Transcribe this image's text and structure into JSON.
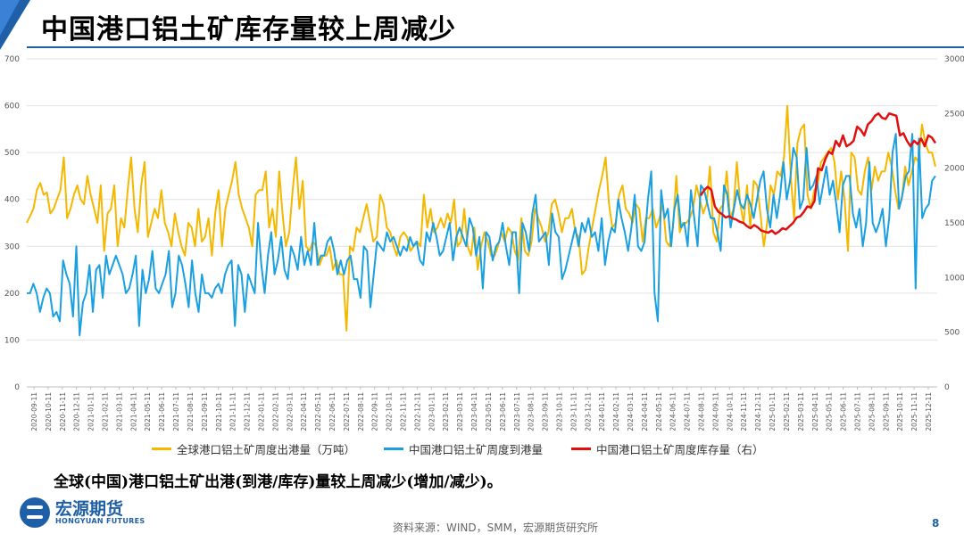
{
  "header": {
    "title": "中国港口铝土矿库存量较上周减少"
  },
  "note": "全球(中国)港口铝土矿出港(到港/库存)量较上周减少(增加/减少)。",
  "footer": {
    "source": "资料来源：WIND，SMM，宏源期货研究所",
    "page": "8",
    "logo_cn": "宏源期货",
    "logo_en": "HONGYUAN FUTURES"
  },
  "colors": {
    "accent": "#1f5fa8",
    "yellow": "#f5b800",
    "blue": "#1aa0e0",
    "red": "#e01010"
  },
  "chart_data": {
    "type": "line",
    "y_left": {
      "min": 0,
      "max": 700,
      "ticks": [
        0,
        100,
        200,
        300,
        400,
        500,
        600,
        700
      ]
    },
    "y_right": {
      "min": 0,
      "max": 3000,
      "ticks": [
        0,
        500,
        1000,
        1500,
        2000,
        2500,
        3000
      ]
    },
    "x_tick_labels": [
      "2020-09-11",
      "2020-10-11",
      "2020-11-11",
      "2020-12-11",
      "2021-01-11",
      "2021-02-11",
      "2021-03-11",
      "2021-04-11",
      "2021-05-11",
      "2021-06-11",
      "2021-07-11",
      "2021-08-11",
      "2021-09-11",
      "2021-10-11",
      "2021-11-11",
      "2021-12-11",
      "2022-01-11",
      "2022-02-11",
      "2022-03-11",
      "2022-04-11",
      "2022-05-11",
      "2022-06-11",
      "2022-07-11",
      "2022-08-11",
      "2022-09-11",
      "2022-10-11",
      "2022-11-11",
      "2022-12-11",
      "2023-01-11",
      "2023-02-11",
      "2023-03-11",
      "2023-04-11",
      "2023-05-11",
      "2023-06-11",
      "2023-07-11",
      "2023-08-11",
      "2023-09-11",
      "2023-10-11",
      "2023-11-11",
      "2023-12-11",
      "2024-01-11",
      "2024-02-11",
      "2024-03-11",
      "2024-04-11",
      "2024-05-11",
      "2024-06-11",
      "2024-07-11",
      "2024-08-11",
      "2024-09-11",
      "2024-10-11",
      "2024-11-11",
      "2024-12-11",
      "2025-01-11",
      "2025-02-11",
      "2025-03-11",
      "2025-04-11",
      "2025-05-11",
      "2025-06-11",
      "2025-07-11",
      "2025-08-11",
      "2025-09-11",
      "2025-10-11",
      "2025-11-11",
      "2025-12-11"
    ],
    "series": [
      {
        "name": "全球港口铝土矿周度出港量（万吨）",
        "axis": "left",
        "color": "#f5b800",
        "values": [
          350,
          365,
          380,
          420,
          435,
          410,
          415,
          370,
          380,
          400,
          420,
          490,
          360,
          380,
          410,
          430,
          400,
          390,
          450,
          410,
          380,
          350,
          430,
          290,
          370,
          380,
          430,
          300,
          360,
          340,
          420,
          490,
          380,
          330,
          430,
          480,
          320,
          350,
          380,
          360,
          420,
          350,
          330,
          300,
          370,
          330,
          300,
          280,
          350,
          340,
          300,
          380,
          310,
          320,
          360,
          280,
          370,
          420,
          300,
          380,
          410,
          440,
          480,
          410,
          380,
          360,
          340,
          300,
          410,
          420,
          420,
          460,
          340,
          380,
          320,
          460,
          370,
          300,
          330,
          420,
          490,
          380,
          440,
          300,
          290,
          310,
          300,
          260,
          280,
          280,
          300,
          250,
          270,
          240,
          240,
          120,
          300,
          290,
          340,
          330,
          360,
          390,
          350,
          310,
          320,
          410,
          390,
          340,
          330,
          300,
          280,
          320,
          330,
          320,
          290,
          300,
          310,
          300,
          410,
          340,
          380,
          330,
          340,
          360,
          340,
          370,
          350,
          400,
          300,
          310,
          380,
          300,
          280,
          340,
          250,
          300,
          330,
          310,
          280,
          280,
          300,
          330,
          310,
          340,
          330,
          290,
          270,
          360,
          290,
          280,
          310,
          380,
          360,
          340,
          310,
          330,
          390,
          400,
          370,
          330,
          360,
          360,
          380,
          330,
          320,
          240,
          250,
          300,
          340,
          380,
          420,
          450,
          490,
          390,
          340,
          350,
          410,
          430,
          380,
          370,
          350,
          390,
          380,
          310,
          360,
          360,
          380,
          340,
          360,
          390,
          310,
          300,
          340,
          450,
          330,
          350,
          350,
          360,
          380,
          430,
          400,
          370,
          390,
          470,
          330,
          310,
          380,
          390,
          460,
          360,
          380,
          480,
          390,
          350,
          430,
          340,
          440,
          430,
          370,
          300,
          350,
          430,
          410,
          460,
          450,
          490,
          600,
          450,
          360,
          520,
          550,
          560,
          410,
          380,
          420,
          430,
          480,
          490,
          500,
          510,
          480,
          400,
          460,
          400,
          290,
          500,
          490,
          420,
          410,
          460,
          490,
          420,
          470,
          440,
          460,
          460,
          500,
          470,
          420,
          380,
          400,
          470,
          430,
          460,
          490,
          480,
          560,
          520,
          500,
          500,
          470
        ]
      },
      {
        "name": "中国港口铝土矿周度到港量",
        "axis": "left",
        "color": "#1aa0e0",
        "values": [
          200,
          200,
          220,
          200,
          160,
          190,
          210,
          200,
          150,
          160,
          140,
          270,
          240,
          220,
          150,
          300,
          110,
          180,
          200,
          260,
          160,
          250,
          260,
          190,
          280,
          240,
          260,
          280,
          260,
          240,
          200,
          210,
          240,
          280,
          130,
          250,
          200,
          230,
          290,
          210,
          200,
          220,
          240,
          290,
          170,
          200,
          280,
          260,
          220,
          170,
          270,
          200,
          160,
          240,
          200,
          200,
          190,
          210,
          220,
          200,
          240,
          260,
          270,
          130,
          260,
          240,
          160,
          240,
          220,
          200,
          350,
          260,
          200,
          280,
          330,
          240,
          270,
          320,
          250,
          230,
          300,
          280,
          250,
          320,
          260,
          290,
          260,
          350,
          260,
          280,
          280,
          310,
          320,
          290,
          240,
          270,
          240,
          270,
          280,
          230,
          230,
          190,
          300,
          290,
          170,
          240,
          310,
          300,
          290,
          330,
          310,
          320,
          300,
          280,
          300,
          290,
          320,
          300,
          310,
          270,
          260,
          330,
          310,
          350,
          320,
          280,
          290,
          320,
          350,
          270,
          320,
          340,
          320,
          300,
          360,
          340,
          280,
          320,
          210,
          330,
          320,
          270,
          300,
          310,
          350,
          300,
          260,
          330,
          330,
          200,
          350,
          330,
          290,
          370,
          410,
          310,
          320,
          330,
          260,
          370,
          330,
          320,
          230,
          250,
          280,
          310,
          340,
          300,
          350,
          330,
          360,
          320,
          330,
          290,
          360,
          260,
          310,
          340,
          330,
          400,
          360,
          330,
          290,
          340,
          410,
          300,
          290,
          310,
          400,
          460,
          200,
          140,
          420,
          360,
          380,
          300,
          380,
          410,
          340,
          350,
          300,
          420,
          360,
          300,
          430,
          420,
          390,
          360,
          360,
          330,
          290,
          430,
          410,
          340,
          380,
          420,
          390,
          380,
          410,
          390,
          360,
          400,
          440,
          460,
          380,
          340,
          410,
          360,
          410,
          480,
          400,
          440,
          510,
          490,
          380,
          400,
          510,
          420,
          430,
          450,
          390,
          430,
          470,
          410,
          440,
          390,
          330,
          430,
          450,
          450,
          370,
          340,
          380,
          300,
          350,
          480,
          350,
          330,
          350,
          380,
          300,
          360,
          500,
          540,
          380,
          410,
          450,
          460,
          540,
          210,
          530,
          360,
          380,
          390,
          440,
          450
        ]
      },
      {
        "name": "中国港口铝土矿周度库存量（右）",
        "axis": "right",
        "color": "#e01010",
        "values": [
          1750,
          1800,
          1830,
          1800,
          1650,
          1600,
          1580,
          1550,
          1560,
          1540,
          1530,
          1510,
          1500,
          1470,
          1450,
          1480,
          1460,
          1430,
          1420,
          1410,
          1430,
          1400,
          1420,
          1450,
          1440,
          1470,
          1500,
          1550,
          1560,
          1600,
          1650,
          1640,
          1700,
          2000,
          1980,
          2080,
          2150,
          2130,
          2250,
          2200,
          2300,
          2200,
          2220,
          2250,
          2380,
          2350,
          2300,
          2400,
          2430,
          2480,
          2500,
          2460,
          2450,
          2500,
          2490,
          2480,
          2300,
          2320,
          2250,
          2200,
          2250,
          2220,
          2270,
          2200,
          2300,
          2280,
          2230
        ]
      }
    ]
  }
}
